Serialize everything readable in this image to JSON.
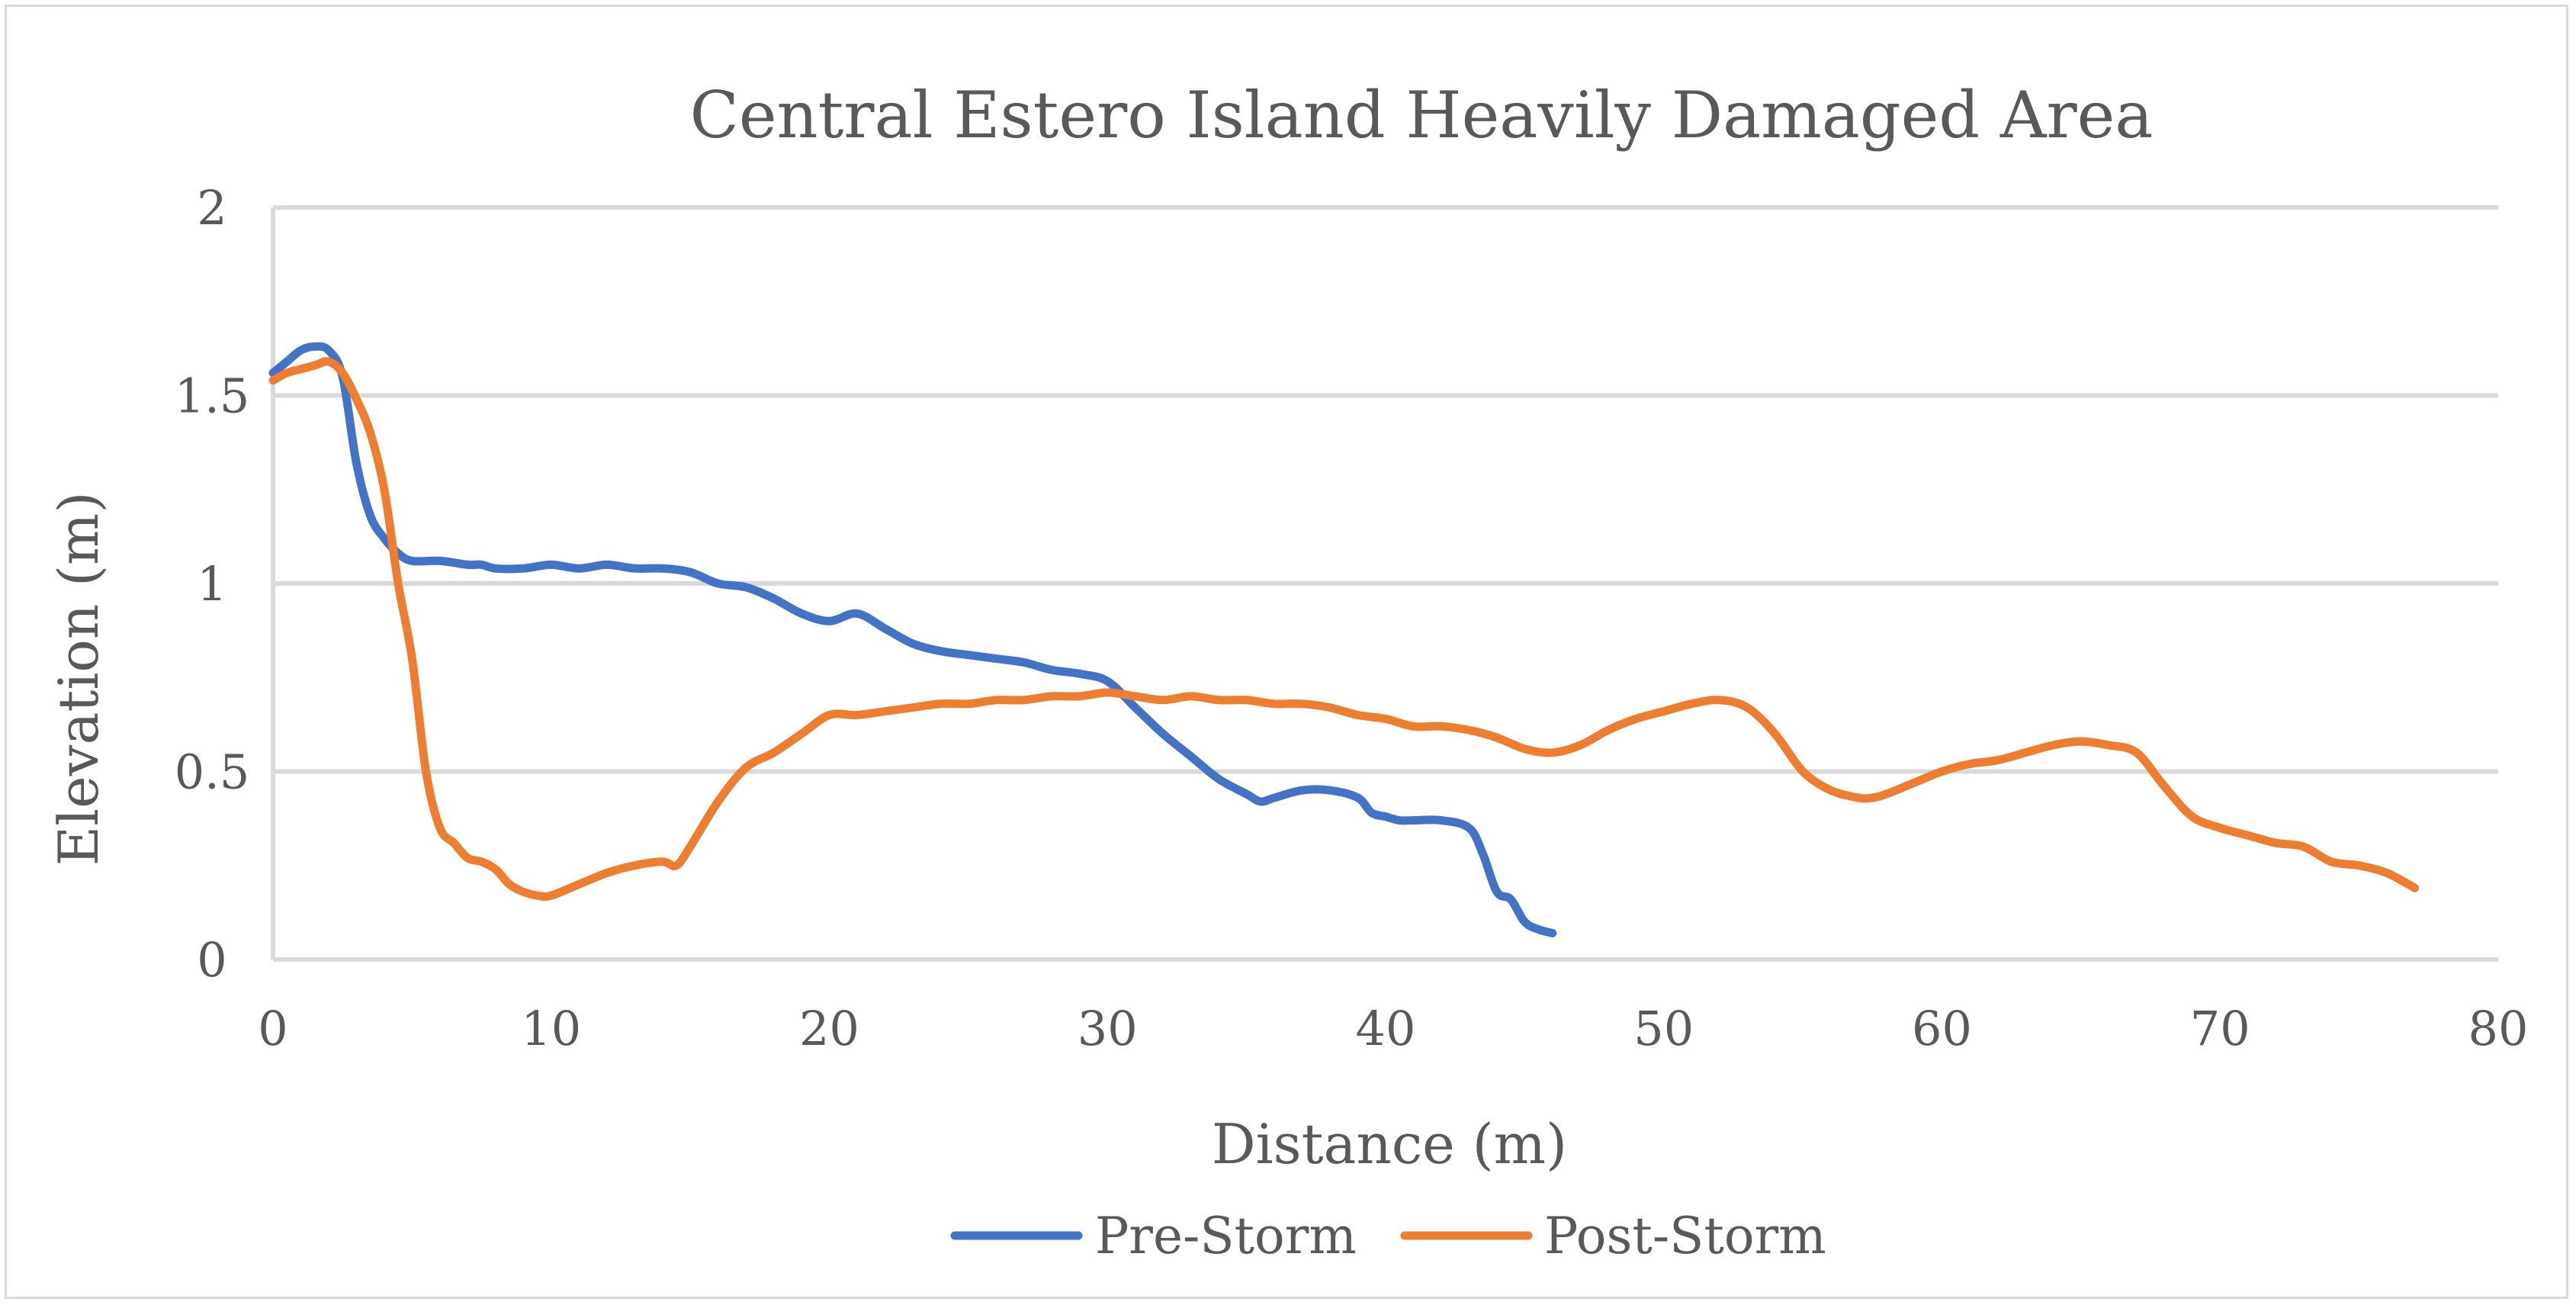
{
  "chart_data": {
    "type": "line",
    "title": "Central Estero Island Heavily Damaged Area",
    "xlabel": "Distance (m)",
    "ylabel": "Elevation (m)",
    "xlim": [
      0,
      80
    ],
    "ylim": [
      0,
      2
    ],
    "x_ticks": [
      0,
      10,
      20,
      30,
      40,
      50,
      60,
      70,
      80
    ],
    "y_ticks": [
      0,
      0.5,
      1,
      1.5,
      2
    ],
    "y_tick_labels": [
      "0",
      "0.5",
      "1",
      "1.5",
      "2"
    ],
    "grid": true,
    "legend_position": "bottom",
    "series": [
      {
        "name": "Pre-Storm",
        "color": "#4472c4",
        "x": [
          0,
          0.5,
          1,
          1.5,
          2,
          2.5,
          3,
          3.5,
          4,
          4.5,
          5,
          6,
          7,
          7.5,
          8,
          9,
          10,
          11,
          12,
          13,
          14,
          15,
          16,
          17,
          18,
          19,
          20,
          21,
          22,
          23,
          24,
          25,
          26,
          27,
          28,
          29,
          30,
          31,
          32,
          33,
          34,
          35,
          35.5,
          36,
          37,
          38,
          39,
          39.5,
          40,
          40.5,
          41,
          42,
          43,
          43.5,
          44,
          44.5,
          45,
          45.5,
          46
        ],
        "y": [
          1.56,
          1.59,
          1.62,
          1.63,
          1.62,
          1.55,
          1.32,
          1.18,
          1.12,
          1.08,
          1.06,
          1.06,
          1.05,
          1.05,
          1.04,
          1.04,
          1.05,
          1.04,
          1.05,
          1.04,
          1.04,
          1.03,
          1.0,
          0.99,
          0.96,
          0.92,
          0.9,
          0.92,
          0.88,
          0.84,
          0.82,
          0.81,
          0.8,
          0.79,
          0.77,
          0.76,
          0.74,
          0.67,
          0.6,
          0.54,
          0.48,
          0.44,
          0.42,
          0.43,
          0.45,
          0.45,
          0.43,
          0.39,
          0.38,
          0.37,
          0.37,
          0.37,
          0.35,
          0.28,
          0.18,
          0.16,
          0.1,
          0.08,
          0.07
        ]
      },
      {
        "name": "Post-Storm",
        "color": "#ed7d31",
        "x": [
          0,
          0.5,
          1,
          1.5,
          2,
          2.5,
          3,
          3.5,
          4,
          4.5,
          5,
          5.5,
          6,
          6.5,
          7,
          7.5,
          8,
          8.5,
          9,
          9.5,
          10,
          11,
          12,
          13,
          14,
          14.5,
          15,
          16,
          17,
          18,
          19,
          20,
          21,
          22,
          23,
          24,
          25,
          26,
          27,
          28,
          29,
          30,
          31,
          32,
          33,
          34,
          35,
          36,
          37,
          38,
          39,
          40,
          41,
          42,
          43,
          44,
          45,
          46,
          47,
          48,
          49,
          50,
          51,
          52,
          53,
          54,
          55,
          56,
          57,
          57.5,
          58,
          59,
          60,
          61,
          62,
          63,
          64,
          65,
          66,
          67,
          68,
          69,
          70,
          71,
          72,
          73,
          74,
          75,
          76,
          77
        ],
        "y": [
          1.54,
          1.56,
          1.57,
          1.58,
          1.59,
          1.56,
          1.49,
          1.4,
          1.25,
          1.0,
          0.8,
          0.5,
          0.35,
          0.31,
          0.27,
          0.26,
          0.24,
          0.2,
          0.18,
          0.17,
          0.17,
          0.2,
          0.23,
          0.25,
          0.26,
          0.25,
          0.3,
          0.42,
          0.51,
          0.55,
          0.6,
          0.65,
          0.65,
          0.66,
          0.67,
          0.68,
          0.68,
          0.69,
          0.69,
          0.7,
          0.7,
          0.71,
          0.7,
          0.69,
          0.7,
          0.69,
          0.69,
          0.68,
          0.68,
          0.67,
          0.65,
          0.64,
          0.62,
          0.62,
          0.61,
          0.59,
          0.56,
          0.55,
          0.57,
          0.61,
          0.64,
          0.66,
          0.68,
          0.69,
          0.67,
          0.6,
          0.5,
          0.45,
          0.43,
          0.43,
          0.44,
          0.47,
          0.5,
          0.52,
          0.53,
          0.55,
          0.57,
          0.58,
          0.57,
          0.55,
          0.46,
          0.38,
          0.35,
          0.33,
          0.31,
          0.3,
          0.26,
          0.25,
          0.23,
          0.19
        ]
      }
    ]
  }
}
